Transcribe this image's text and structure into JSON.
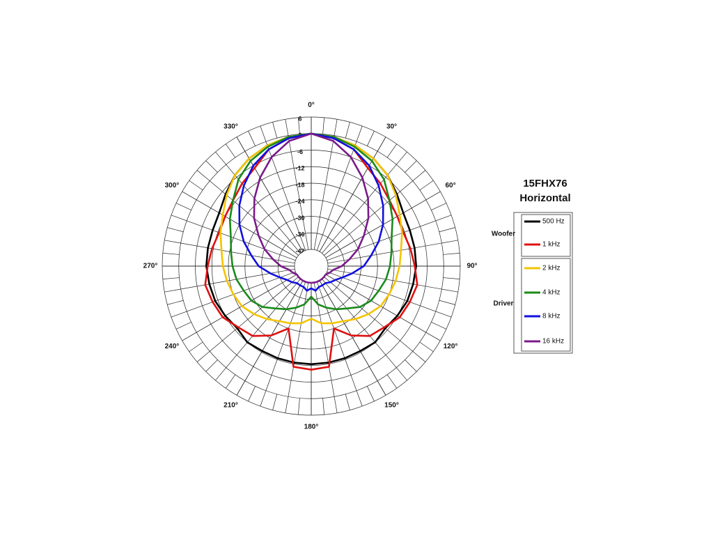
{
  "chart_data": {
    "type": "polar-line",
    "title": "15FHX76",
    "subtitle": "Horizontal",
    "legend_groups": [
      "Woofer",
      "Driver"
    ],
    "rlim": [
      -42,
      6
    ],
    "rticks": [
      6,
      0,
      -6,
      -12,
      -18,
      -24,
      -30,
      -36,
      -42
    ],
    "thetaticks": [
      {
        "value": 0,
        "label": "0°"
      },
      {
        "value": 30,
        "label": "30°"
      },
      {
        "value": 60,
        "label": "60°"
      },
      {
        "value": 90,
        "label": "90°"
      },
      {
        "value": 120,
        "label": "120°"
      },
      {
        "value": 150,
        "label": "150°"
      },
      {
        "value": 180,
        "label": "180°"
      },
      {
        "value": 210,
        "label": "210°"
      },
      {
        "value": 240,
        "label": "240°"
      },
      {
        "value": 270,
        "label": "270°"
      },
      {
        "value": 300,
        "label": "300°"
      },
      {
        "value": 330,
        "label": "330°"
      }
    ],
    "theta": [
      0,
      10,
      20,
      30,
      40,
      50,
      60,
      70,
      80,
      90,
      100,
      110,
      120,
      130,
      140,
      150,
      160,
      170,
      180,
      190,
      200,
      210,
      220,
      230,
      240,
      250,
      260,
      270,
      280,
      290,
      300,
      310,
      320,
      330,
      340,
      350
    ],
    "series": [
      {
        "name": "500 Hz",
        "color": "#000000",
        "values": [
          0,
          -0.5,
          -1.5,
          -3,
          -5,
          -7.5,
          -9.5,
          -10,
          -10,
          -10,
          -10.5,
          -11,
          -12,
          -13,
          -12,
          -12.5,
          -12.5,
          -12.5,
          -12.5,
          -12.5,
          -12.5,
          -12.5,
          -12,
          -13,
          -12,
          -11,
          -10.5,
          -10,
          -10,
          -10,
          -9.5,
          -7.5,
          -5,
          -3,
          -1.5,
          -0.5
        ]
      },
      {
        "name": "1 kHz",
        "color": "#e01010",
        "values": [
          0,
          -1,
          -3,
          -7,
          -9,
          -11,
          -12,
          -12.5,
          -11.5,
          -10.5,
          -9,
          -10,
          -11,
          -13.5,
          -15,
          -19,
          -24,
          -11,
          -10.5,
          -11,
          -24,
          -19,
          -15,
          -13.5,
          -11,
          -10,
          -9,
          -10.5,
          -11.5,
          -12.5,
          -12,
          -11,
          -9,
          -7,
          -3,
          -1
        ]
      },
      {
        "name": "2 kHz",
        "color": "#f5c400",
        "values": [
          0,
          -0.5,
          -1.5,
          -3,
          -5,
          -8,
          -11,
          -13,
          -15,
          -16,
          -17,
          -18,
          -19,
          -21,
          -23,
          -25,
          -26,
          -27,
          -29,
          -27,
          -26,
          -25,
          -23,
          -21,
          -19,
          -18,
          -17,
          -16,
          -15,
          -13,
          -11,
          -8,
          -5,
          -3,
          -1.5,
          -0.5
        ]
      },
      {
        "name": "4 kHz",
        "color": "#1a8a1a",
        "values": [
          0,
          -0.5,
          -2,
          -4,
          -7,
          -11,
          -14,
          -17,
          -18.5,
          -19.5,
          -20.5,
          -22,
          -23,
          -25,
          -28,
          -30,
          -32,
          -34,
          -37,
          -34,
          -32,
          -30,
          -28,
          -25,
          -23,
          -22,
          -20.5,
          -19.5,
          -18.5,
          -17,
          -14,
          -11,
          -7,
          -4,
          -2,
          -0.5
        ]
      },
      {
        "name": "8 kHz",
        "color": "#1010e0",
        "values": [
          0,
          -1,
          -3,
          -6,
          -10,
          -14,
          -18,
          -22,
          -26,
          -29,
          -33,
          -36,
          -38,
          -39,
          -40,
          -40,
          -40,
          -39,
          -40,
          -39,
          -40,
          -40,
          -40,
          -39,
          -38,
          -36,
          -33,
          -29,
          -26,
          -22,
          -18,
          -14,
          -10,
          -6,
          -3,
          -1
        ]
      },
      {
        "name": "16 kHz",
        "color": "#7a1a8a",
        "values": [
          0,
          -2,
          -6,
          -11,
          -16,
          -21,
          -26,
          -30,
          -34,
          -37,
          -40,
          -41,
          -42,
          -42,
          -42,
          -42,
          -42,
          -42,
          -42,
          -42,
          -42,
          -42,
          -42,
          -42,
          -42,
          -41,
          -40,
          -37,
          -34,
          -30,
          -26,
          -21,
          -16,
          -11,
          -6,
          -2
        ]
      }
    ]
  }
}
